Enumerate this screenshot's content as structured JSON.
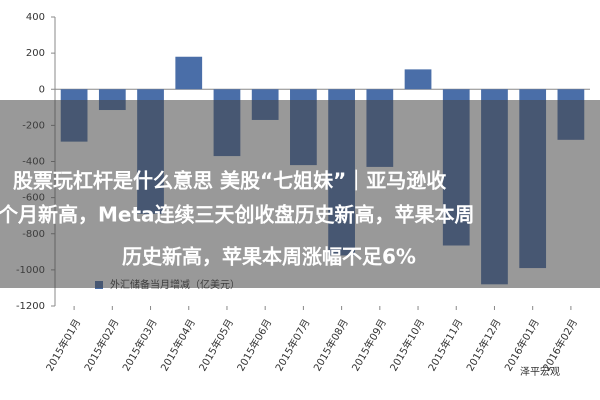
{
  "chart_data": {
    "type": "bar",
    "categories": [
      "2015年01月",
      "2015年02月",
      "2015年03月",
      "2015年04月",
      "2015年05月",
      "2015年06月",
      "2015年07月",
      "2015年08月",
      "2015年09月",
      "2015年10月",
      "2015年11月",
      "2015年12月",
      "2016年01月",
      "2016年02月"
    ],
    "series": [
      {
        "name": "外汇储备当月增减（亿美元）",
        "color": "#4a6ea8",
        "values": [
          -290,
          -115,
          -690,
          180,
          -370,
          -170,
          -420,
          -920,
          -430,
          110,
          -865,
          -1080,
          -990,
          -280
        ]
      }
    ],
    "ylim": [
      -1200,
      400
    ],
    "yticks": [
      -1200,
      -1000,
      -800,
      -600,
      -400,
      -200,
      0,
      200,
      400
    ],
    "legend": "lower-left"
  },
  "overlay": {
    "lines": [
      "股票玩杠杆是什么意思 美股“七姐妹”｜亚马逊收",
      "个月新高，Meta连续三天创收盘历史新高，苹果本周",
      "历史新高，苹果本周涨幅不足6%"
    ]
  },
  "watermark": "泽平宏观"
}
